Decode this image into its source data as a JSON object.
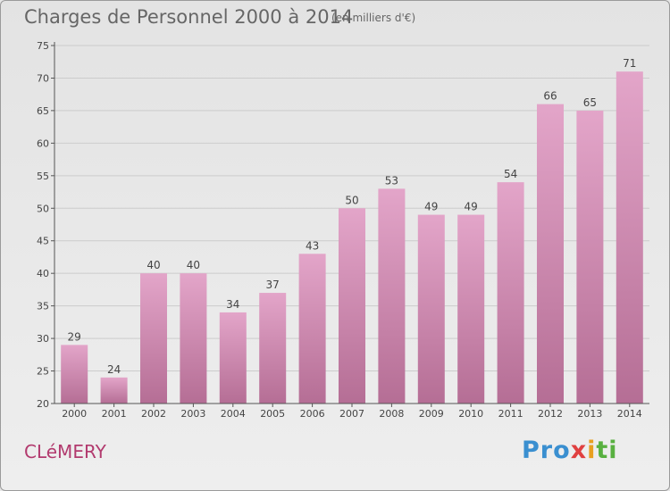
{
  "title": "Charges de Personnel 2000 à 2014",
  "subtitle": "(en milliers d'€)",
  "commune": "CLéMERY",
  "logo": {
    "letters": [
      {
        "ch": "P",
        "color": "#3a8fd0"
      },
      {
        "ch": "r",
        "color": "#3a8fd0"
      },
      {
        "ch": "o",
        "color": "#3a8fd0"
      },
      {
        "ch": "x",
        "color": "#e04040"
      },
      {
        "ch": "i",
        "color": "#e8a020"
      },
      {
        "ch": "t",
        "color": "#58b040"
      },
      {
        "ch": "i",
        "color": "#58b040"
      }
    ]
  },
  "colors": {
    "bar_top": "#e3a5c9",
    "bar_bottom": "#b56e95",
    "grid": "#cccccc",
    "axis": "#555555"
  },
  "chart_data": {
    "type": "bar",
    "categories": [
      "2000",
      "2001",
      "2002",
      "2003",
      "2004",
      "2005",
      "2006",
      "2007",
      "2008",
      "2009",
      "2010",
      "2011",
      "2012",
      "2013",
      "2014"
    ],
    "values": [
      29,
      24,
      40,
      40,
      34,
      37,
      43,
      50,
      53,
      49,
      49,
      54,
      66,
      65,
      71
    ],
    "ylim": [
      20,
      75
    ],
    "yticks": [
      20,
      25,
      30,
      35,
      40,
      45,
      50,
      55,
      60,
      65,
      70,
      75
    ],
    "grid": true,
    "xlabel": "",
    "ylabel": ""
  }
}
